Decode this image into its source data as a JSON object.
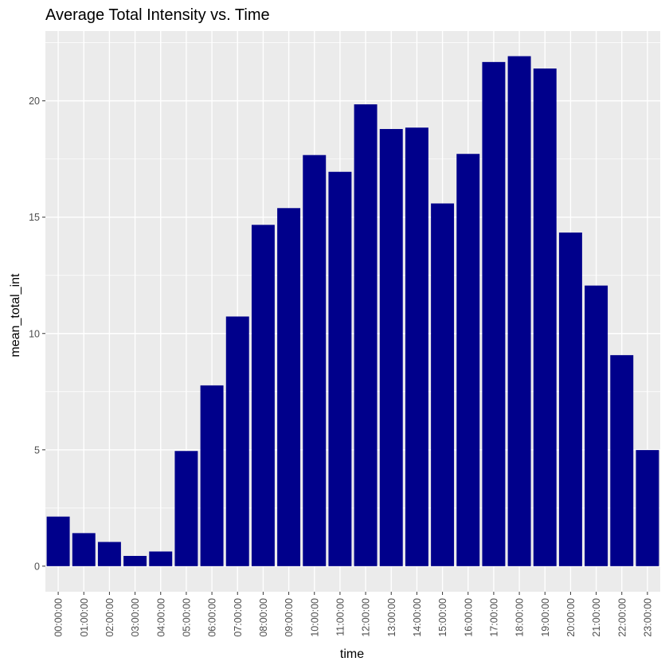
{
  "chart_data": {
    "type": "bar",
    "title": "Average Total Intensity vs. Time",
    "xlabel": "time",
    "ylabel": "mean_total_int",
    "categories": [
      "00:00:00",
      "01:00:00",
      "02:00:00",
      "03:00:00",
      "04:00:00",
      "05:00:00",
      "06:00:00",
      "07:00:00",
      "08:00:00",
      "09:00:00",
      "10:00:00",
      "11:00:00",
      "12:00:00",
      "13:00:00",
      "14:00:00",
      "15:00:00",
      "16:00:00",
      "17:00:00",
      "18:00:00",
      "19:00:00",
      "20:00:00",
      "21:00:00",
      "22:00:00",
      "23:00:00"
    ],
    "values": [
      2.13,
      1.42,
      1.04,
      0.44,
      0.63,
      4.95,
      7.77,
      10.73,
      14.67,
      15.39,
      17.67,
      16.95,
      19.85,
      18.79,
      18.85,
      15.59,
      17.72,
      21.67,
      21.92,
      21.39,
      14.34,
      12.06,
      9.07,
      4.99
    ],
    "yticks": [
      0,
      5,
      10,
      15,
      20
    ],
    "ytick_labels": [
      "0",
      "5",
      "10",
      "15",
      "20"
    ],
    "ylim": [
      -1.1,
      23.0
    ],
    "bar_color": "#00008B",
    "panel_color": "#EBEBEB",
    "grid": true,
    "legend": "none"
  }
}
